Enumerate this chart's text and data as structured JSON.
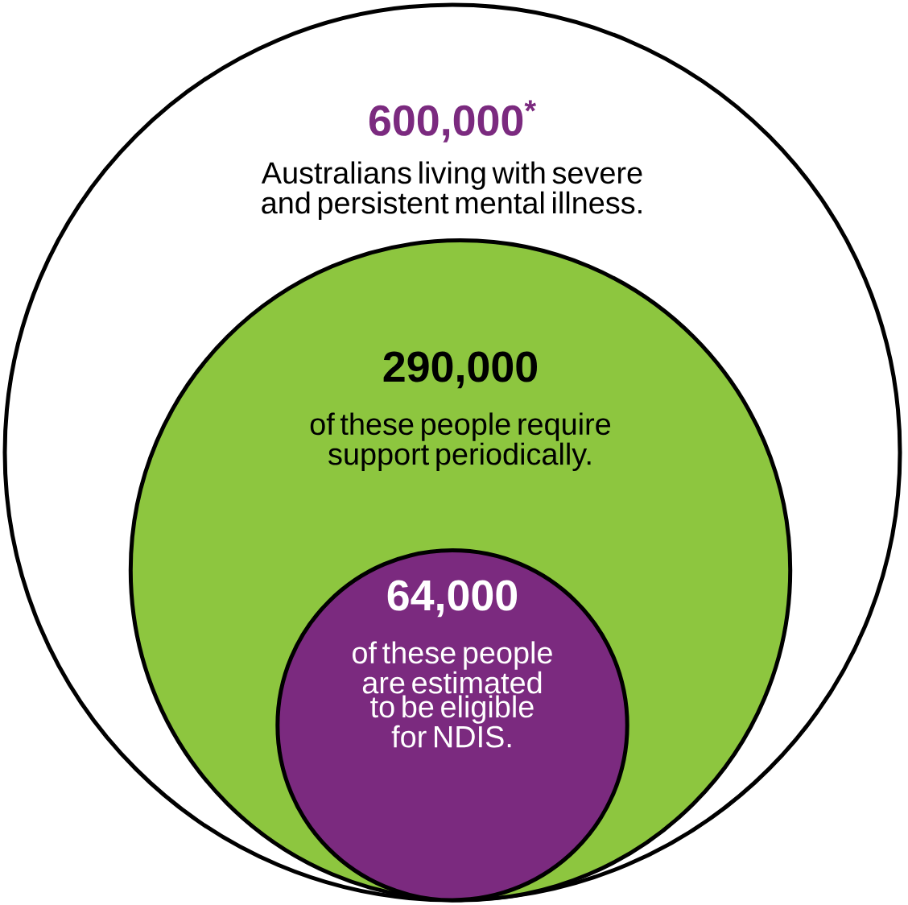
{
  "chart_data": {
    "type": "other",
    "categories": [
      "Australians living with severe and persistent mental illness.",
      "of these people require support periodically.",
      "of these people are estimated to be eligible for NDIS."
    ],
    "values": [
      600000,
      290000,
      64000
    ],
    "value_labels": [
      "600,000$^{*}$",
      "290,000",
      "64,000"
    ],
    "colors": [
      "#ffffff",
      "#8dc63f",
      "#7b2a7f"
    ]
  }
}
